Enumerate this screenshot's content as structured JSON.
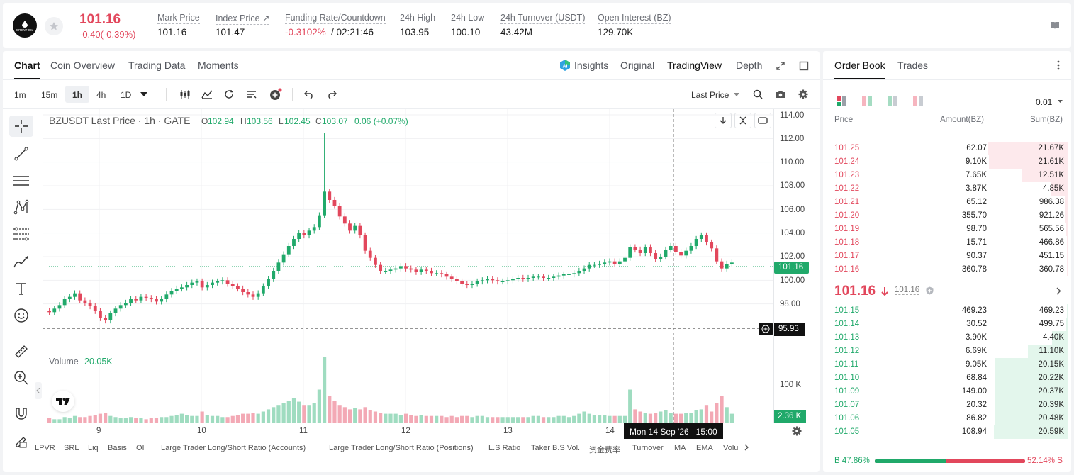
{
  "header": {
    "logo_text": "BRENT OIL",
    "price": "101.16",
    "change": "-0.40(-0.39%)",
    "stats": [
      {
        "label": "Mark Price",
        "value": "101.16"
      },
      {
        "label": "Index Price ↗",
        "value": "101.47"
      },
      {
        "label": "Funding Rate/Countdown",
        "value": "-0.3102%",
        "value2": "/ 02:21:46"
      },
      {
        "label": "24h High",
        "value": "103.95"
      },
      {
        "label": "24h Low",
        "value": "100.10"
      },
      {
        "label": "24h Turnover (USDT)",
        "value": "43.42M"
      },
      {
        "label": "Open Interest (BZ)",
        "value": "129.70K"
      }
    ]
  },
  "chart_tabs": [
    "Chart",
    "Coin Overview",
    "Trading Data",
    "Moments"
  ],
  "view_tabs": {
    "insights": "Insights",
    "original": "Original",
    "tradingview": "TradingView",
    "depth": "Depth"
  },
  "timeframes": [
    "1m",
    "15m",
    "1h",
    "4h",
    "1D"
  ],
  "price_type": "Last Price",
  "legend": {
    "symbol": "BZUSDT Last Price · 1h · GATE",
    "o_label": "O",
    "o": "102.94",
    "h_label": "H",
    "h": "103.56",
    "l_label": "L",
    "l": "102.45",
    "c_label": "C",
    "c": "103.07",
    "chg": "0.06 (+0.07%)"
  },
  "volume_legend": {
    "label": "Volume",
    "value": "20.05K"
  },
  "price_axis": [
    "114.00",
    "112.00",
    "110.00",
    "108.00",
    "106.00",
    "104.00",
    "102.00",
    "100.00",
    "98.00"
  ],
  "current_price_tag": "101.16",
  "crosshair_price": "95.93",
  "volume_axis": "100 K",
  "volume_tag": "2.36 K",
  "time_axis": [
    "9",
    "10",
    "11",
    "12",
    "13",
    "14"
  ],
  "crosshair_time": "Mon 14 Sep '26   15:00",
  "indicators": [
    "LPVR",
    "SRL",
    "Liq",
    "Basis",
    "OI",
    "Large Trader Long/Short Ratio (Accounts)",
    "Large Trader Long/Short Ratio (Positions)",
    "L.S Ratio",
    "Taker B.S Vol.",
    "资金费率",
    "Turnover",
    "MA",
    "EMA",
    "Volu"
  ],
  "orderbook": {
    "tabs": [
      "Order Book",
      "Trades"
    ],
    "precision": "0.01",
    "headers": [
      "Price",
      "Amount(BZ)",
      "Sum(BZ)"
    ],
    "asks": [
      {
        "price": "101.25",
        "amount": "62.07",
        "sum": "21.67K",
        "depth": 0.99
      },
      {
        "price": "101.24",
        "amount": "9.10K",
        "sum": "21.61K",
        "depth": 0.985
      },
      {
        "price": "101.23",
        "amount": "7.65K",
        "sum": "12.51K",
        "depth": 0.57
      },
      {
        "price": "101.22",
        "amount": "3.87K",
        "sum": "4.85K",
        "depth": 0.22
      },
      {
        "price": "101.21",
        "amount": "65.12",
        "sum": "986.38",
        "depth": 0.045
      },
      {
        "price": "101.20",
        "amount": "355.70",
        "sum": "921.26",
        "depth": 0.042
      },
      {
        "price": "101.19",
        "amount": "98.70",
        "sum": "565.56",
        "depth": 0.026
      },
      {
        "price": "101.18",
        "amount": "15.71",
        "sum": "466.86",
        "depth": 0.021
      },
      {
        "price": "101.17",
        "amount": "90.37",
        "sum": "451.15",
        "depth": 0.02
      },
      {
        "price": "101.16",
        "amount": "360.78",
        "sum": "360.78",
        "depth": 0.016
      }
    ],
    "last_price": "101.16",
    "mark_price": "101.16",
    "bids": [
      {
        "price": "101.15",
        "amount": "469.23",
        "sum": "469.23",
        "depth": 0.021
      },
      {
        "price": "101.14",
        "amount": "30.52",
        "sum": "499.75",
        "depth": 0.022
      },
      {
        "price": "101.13",
        "amount": "3.90K",
        "sum": "4.40K",
        "depth": 0.2
      },
      {
        "price": "101.12",
        "amount": "6.69K",
        "sum": "11.10K",
        "depth": 0.5
      },
      {
        "price": "101.11",
        "amount": "9.05K",
        "sum": "20.15K",
        "depth": 0.9
      },
      {
        "price": "101.10",
        "amount": "68.84",
        "sum": "20.22K",
        "depth": 0.905
      },
      {
        "price": "101.09",
        "amount": "149.00",
        "sum": "20.37K",
        "depth": 0.91
      },
      {
        "price": "101.07",
        "amount": "20.32",
        "sum": "20.39K",
        "depth": 0.912
      },
      {
        "price": "101.06",
        "amount": "86.82",
        "sum": "20.48K",
        "depth": 0.915
      },
      {
        "price": "101.05",
        "amount": "108.94",
        "sum": "20.59K",
        "depth": 0.92
      }
    ],
    "buy_ratio": "B 47.86%",
    "sell_ratio": "52.14% S",
    "buy_fraction": 0.4786
  },
  "chart_data": {
    "type": "candlestick",
    "symbol": "BZUSDT",
    "interval": "1h",
    "ylim": [
      96,
      114
    ],
    "x_ticks": [
      "9",
      "10",
      "11",
      "12",
      "13",
      "14"
    ],
    "close": [
      97.3,
      97.6,
      97.9,
      98.4,
      98.6,
      98.9,
      98.3,
      98.1,
      97.8,
      97.4,
      96.8,
      96.6,
      97.2,
      97.6,
      97.9,
      98.1,
      98.4,
      98.3,
      98.6,
      98.5,
      98.4,
      98.2,
      98.4,
      98.8,
      99.1,
      99.3,
      99.4,
      99.6,
      99.8,
      99.9,
      99.4,
      99.6,
      99.8,
      99.9,
      100.0,
      99.7,
      99.5,
      99.3,
      99.0,
      98.8,
      98.6,
      98.9,
      99.5,
      100.1,
      100.8,
      101.5,
      102.2,
      102.9,
      103.5,
      104.0,
      103.8,
      104.2,
      104.5,
      105.5,
      107.5,
      106.8,
      106.3,
      105.4,
      104.8,
      104.2,
      104.6,
      103.8,
      102.5,
      101.9,
      101.3,
      100.8,
      100.8,
      100.9,
      101.0,
      101.2,
      101.0,
      100.9,
      100.7,
      100.9,
      100.8,
      100.6,
      100.6,
      100.5,
      100.3,
      100.1,
      99.9,
      99.7,
      99.6,
      99.7,
      99.9,
      100.0,
      100.1,
      100.0,
      99.9,
      99.9,
      100.0,
      100.1,
      100.2,
      100.1,
      100.2,
      100.3,
      100.3,
      100.2,
      100.2,
      100.3,
      100.4,
      100.5,
      100.5,
      100.6,
      100.8,
      101.0,
      101.3,
      101.3,
      101.4,
      101.5,
      101.6,
      101.4,
      101.6,
      101.9,
      102.8,
      102.6,
      102.3,
      102.8,
      102.3,
      101.8,
      102.0,
      102.6,
      102.9,
      102.4,
      102.1,
      102.5,
      102.9,
      103.5,
      103.8,
      103.2,
      102.7,
      101.6,
      101.0,
      101.4,
      101.5
    ],
    "volume": [
      4,
      3,
      3,
      5,
      4,
      6,
      5,
      5,
      6,
      7,
      8,
      9,
      6,
      5,
      4,
      4,
      5,
      4,
      4,
      3,
      4,
      4,
      5,
      5,
      6,
      7,
      8,
      7,
      6,
      6,
      10,
      7,
      6,
      6,
      5,
      5,
      6,
      7,
      8,
      8,
      9,
      8,
      10,
      12,
      14,
      16,
      18,
      20,
      22,
      19,
      16,
      16,
      18,
      30,
      60,
      24,
      20,
      16,
      14,
      12,
      13,
      12,
      14,
      11,
      10,
      9,
      8,
      8,
      8,
      7,
      8,
      7,
      6,
      7,
      6,
      6,
      6,
      6,
      5,
      6,
      5,
      6,
      6,
      5,
      6,
      6,
      5,
      5,
      5,
      5,
      5,
      5,
      5,
      5,
      5,
      6,
      6,
      5,
      5,
      5,
      6,
      6,
      5,
      6,
      8,
      10,
      8,
      7,
      7,
      7,
      6,
      6,
      6,
      6,
      30,
      12,
      10,
      9,
      8,
      9,
      10,
      11,
      9,
      8,
      8,
      9,
      9,
      11,
      12,
      16,
      10,
      18,
      24,
      14,
      8
    ]
  }
}
